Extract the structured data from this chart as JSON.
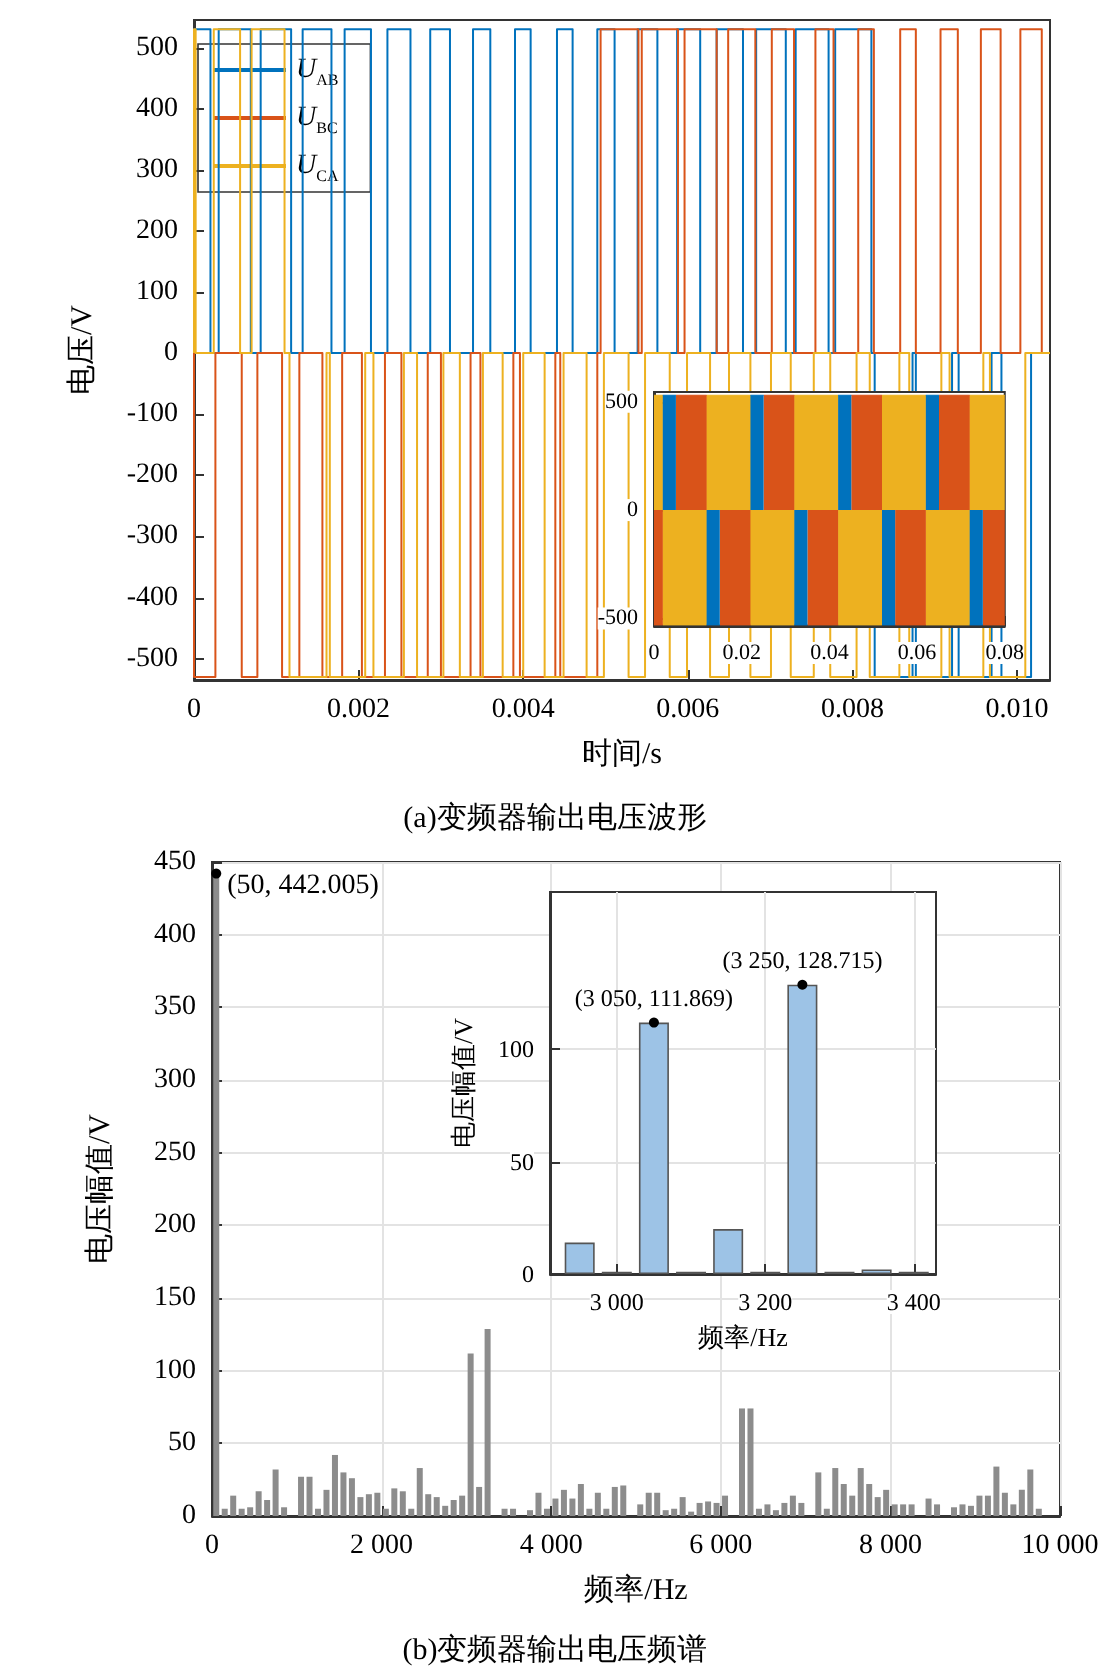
{
  "chart_data": [
    {
      "type": "step",
      "xlabel": "时间/s",
      "ylabel": "电压/V",
      "annotations": [
        "(a)变频器输出电压波形"
      ],
      "xlim": [
        0,
        0.0104
      ],
      "xticks": [
        0,
        0.002,
        0.004,
        0.006,
        0.008,
        {
          "value": 0.01,
          "label": "0.010"
        }
      ],
      "ylim": [
        -535,
        545
      ],
      "yticks": [
        -500,
        -400,
        -300,
        -200,
        -100,
        0,
        100,
        200,
        300,
        400,
        500
      ],
      "legend": "top left",
      "series": [
        {
          "name": "U$_{AB}$",
          "color": "#0072bd",
          "x": [
            0,
            0.0002,
            0.0003,
            0.00069,
            0.00081,
            0.00118,
            0.00132,
            0.00167,
            0.00183,
            0.00215,
            0.00235,
            0.00263,
            0.00287,
            0.00311,
            0.00339,
            0.0036,
            0.0039,
            0.00409,
            0.00441,
            0.0046,
            0.0049,
            0.00511,
            0.00539,
            0.00563,
            0.00587,
            0.00615,
            0.00635,
            0.00667,
            0.00683,
            0.00719,
            0.00731,
            0.00771,
            0.00779,
            0.00823,
            0.00827,
            0.00873,
            0.00877,
            0.00921,
            0.00929,
            0.00969,
            0.00981,
            0.01017,
            0.01033,
            0.0104
          ],
          "values": [
            0,
            530,
            0,
            530,
            0,
            530,
            0,
            530,
            0,
            530,
            0,
            530,
            0,
            530,
            0,
            530,
            0,
            530,
            0,
            530,
            0,
            530,
            0,
            530,
            0,
            530,
            0,
            530,
            0,
            530,
            0,
            530,
            0,
            530,
            0,
            -530,
            0,
            -530,
            0,
            -530,
            0,
            -530,
            0,
            0
          ]
        },
        {
          "name": "U$_{BC}$",
          "color": "#d95319",
          "x": [
            0,
            0.00026,
            0.00058,
            0.00077,
            0.00107,
            0.00128,
            0.00156,
            0.0018,
            0.00204,
            0.00232,
            0.00252,
            0.00284,
            0.003,
            0.00336,
            0.00348,
            0.00388,
            0.00396,
            0.00439,
            0.00445,
            0.0049,
            0.00494,
            0.0054,
            0.00544,
            0.00588,
            0.00596,
            0.00635,
            0.00649,
            0.00682,
            0.00702,
            0.00729,
            0.00755,
            0.00777,
            0.00807,
            0.00826,
            0.00858,
            0.00877,
            0.00907,
            0.00928,
            0.00956,
            0.0098,
            0.01004,
            0.0103,
            0.01038,
            0.0104
          ],
          "values": [
            0,
            -530,
            0,
            -530,
            0,
            -530,
            0,
            -530,
            0,
            -530,
            0,
            -530,
            0,
            -530,
            0,
            -530,
            0,
            -530,
            0,
            -530,
            0,
            530,
            0,
            530,
            0,
            530,
            0,
            530,
            0,
            530,
            0,
            530,
            0,
            530,
            0,
            530,
            0,
            530,
            0,
            530,
            0,
            530,
            0,
            0
          ]
        },
        {
          "name": "U$_{CA}$",
          "color": "#edb120",
          "x": [
            0,
            2e-05,
            0.00024,
            0.00056,
            0.0007,
            0.0011,
            0.00116,
            0.00161,
            0.00165,
            0.00208,
            0.00218,
            0.00255,
            0.00271,
            0.00303,
            0.00323,
            0.00351,
            0.00375,
            0.004,
            0.00426,
            0.00449,
            0.00477,
            0.00498,
            0.00528,
            0.00548,
            0.00578,
            0.00599,
            0.00627,
            0.0065,
            0.00676,
            0.00701,
            0.00725,
            0.00753,
            0.00773,
            0.00805,
            0.00821,
            0.00857,
            0.00869,
            0.00908,
            0.00918,
            0.00959,
            0.00967,
            0.0101,
            0.01016,
            0.0104
          ],
          "values": [
            0,
            530,
            0,
            530,
            0,
            530,
            0,
            -530,
            0,
            -530,
            0,
            -530,
            0,
            -530,
            0,
            -530,
            0,
            -530,
            0,
            -530,
            0,
            -530,
            0,
            -530,
            0,
            -530,
            0,
            -530,
            0,
            -530,
            0,
            -530,
            0,
            -530,
            0,
            -530,
            0,
            -530,
            0,
            -530,
            0,
            -530,
            0,
            0
          ]
        }
      ]
    },
    {
      "type": "area",
      "xlim": [
        0,
        0.08
      ],
      "xticks": [
        0,
        0.02,
        0.04,
        0.06,
        0.08
      ],
      "ylim": [
        -535,
        545
      ],
      "yticks": [
        -500,
        0,
        500
      ],
      "series": [
        {
          "color": "#edb120",
          "x": [
            0,
            0.002,
            0.002,
            0.012,
            0.012,
            0.022,
            0.022,
            0.032,
            0.032,
            0.042,
            0.042,
            0.052,
            0.052,
            0.062,
            0.062,
            0.072,
            0.072,
            0.08
          ],
          "values": [
            530,
            530,
            -530,
            -530,
            530,
            530,
            -530,
            -530,
            530,
            530,
            -530,
            -530,
            530,
            530,
            -530,
            -530,
            530,
            530
          ]
        },
        {
          "color": "#d95319",
          "x": [
            0,
            0.002,
            0.0035,
            0.005,
            0.012,
            0.0135,
            0.015,
            0.022,
            0.0235,
            0.025,
            0.032,
            0.0335,
            0.035,
            0.042,
            0.0435,
            0.045,
            0.052,
            0.0535,
            0.055,
            0.062,
            0.0635,
            0.065,
            0.072,
            0.0735,
            0.075,
            0.08
          ],
          "values": [
            -530,
            -530,
            null,
            530,
            530,
            null,
            -530,
            -530,
            null,
            530,
            530,
            null,
            -530,
            -530,
            null,
            530,
            530,
            null,
            -530,
            -530,
            null,
            530,
            530,
            null,
            -530,
            -530
          ]
        },
        {
          "color": "#0072bd",
          "x": [
            0.002,
            0.005,
            0.0085,
            0.012,
            0.015,
            0.0185,
            0.022,
            0.025,
            0.0285,
            0.032,
            0.035,
            0.0385,
            0.042,
            0.045,
            0.0485,
            0.052,
            0.055,
            0.0585,
            0.062,
            0.065,
            0.0685,
            0.072,
            0.075
          ],
          "values": [
            530,
            530,
            null,
            -530,
            -530,
            null,
            530,
            530,
            null,
            -530,
            -530,
            null,
            530,
            530,
            null,
            -530,
            -530,
            null,
            530,
            530,
            null,
            -530,
            -530
          ]
        }
      ]
    },
    {
      "type": "bar",
      "xlabel": "频率/Hz",
      "ylabel": "电压幅值/V",
      "grid": true,
      "color": "#8c8c8c",
      "xlim": [
        0,
        10000
      ],
      "xticks": [
        0,
        {
          "value": 2000,
          "label": "2 000"
        },
        {
          "value": 4000,
          "label": "4 000"
        },
        {
          "value": 6000,
          "label": "6 000"
        },
        {
          "value": 8000,
          "label": "8 000"
        },
        {
          "value": 10000,
          "label": "10 000"
        }
      ],
      "ylim": [
        0,
        450
      ],
      "yticks": [
        0,
        50,
        100,
        150,
        200,
        250,
        300,
        350,
        400,
        450
      ],
      "annotations": [
        {
          "text": "(50, 442.005)",
          "x": 50,
          "y": 442.005
        },
        "(b)变频器输出电压频谱"
      ],
      "x": [
        50,
        150,
        250,
        350,
        450,
        550,
        650,
        750,
        850,
        1050,
        1150,
        1250,
        1350,
        1450,
        1550,
        1650,
        1750,
        1850,
        1950,
        2050,
        2150,
        2250,
        2350,
        2450,
        2550,
        2650,
        2750,
        2850,
        2950,
        3050,
        3150,
        3250,
        3450,
        3550,
        3750,
        3850,
        3950,
        4050,
        4150,
        4250,
        4350,
        4450,
        4550,
        4650,
        4750,
        4850,
        5050,
        5150,
        5250,
        5350,
        5450,
        5550,
        5650,
        5750,
        5850,
        5950,
        6050,
        6250,
        6350,
        6450,
        6550,
        6650,
        6750,
        6850,
        6950,
        7150,
        7250,
        7350,
        7450,
        7550,
        7650,
        7750,
        7850,
        7950,
        8050,
        8150,
        8250,
        8450,
        8550,
        8750,
        8850,
        8950,
        9050,
        9150,
        9250,
        9350,
        9450,
        9550,
        9650,
        9750
      ],
      "values": [
        442.005,
        5,
        14,
        5,
        6,
        17,
        11,
        32,
        6,
        27,
        27,
        5,
        18,
        42,
        30,
        26,
        13,
        15,
        16,
        5,
        19,
        17,
        5,
        33,
        15,
        13,
        7,
        11,
        14,
        111.869,
        20,
        128.715,
        5,
        5,
        4,
        16,
        5,
        12,
        18,
        12,
        22,
        5,
        16,
        5,
        20,
        21,
        8,
        16,
        16,
        4,
        5,
        13,
        3,
        9,
        10,
        9,
        14,
        74,
        74,
        5,
        8,
        4,
        9,
        14,
        9,
        30,
        5,
        33,
        22,
        14,
        33,
        22,
        13,
        18,
        8,
        8,
        8,
        12,
        8,
        6,
        8,
        7,
        14,
        14,
        34,
        16,
        8,
        18,
        32,
        5
      ]
    },
    {
      "type": "bar",
      "xlabel": "频率/Hz",
      "ylabel": "电压幅值/V",
      "grid": true,
      "color": "#9dc3e6",
      "xlim": [
        2910,
        3430
      ],
      "xticks": [
        {
          "value": 3000,
          "label": "3 000"
        },
        {
          "value": 3200,
          "label": "3 200"
        },
        {
          "value": 3400,
          "label": "3 400"
        }
      ],
      "ylim": [
        0,
        170
      ],
      "yticks": [
        0,
        50,
        100
      ],
      "annotations": [
        {
          "text": "(3 050, 111.869)",
          "x": 3050,
          "y": 111.869
        },
        {
          "text": "(3 250, 128.715)",
          "x": 3250,
          "y": 128.715
        }
      ],
      "x": [
        2950,
        3000,
        3050,
        3100,
        3150,
        3200,
        3250,
        3300,
        3350,
        3400
      ],
      "values": [
        14,
        1,
        111.869,
        1,
        20,
        1,
        128.715,
        1,
        2,
        1
      ]
    }
  ]
}
